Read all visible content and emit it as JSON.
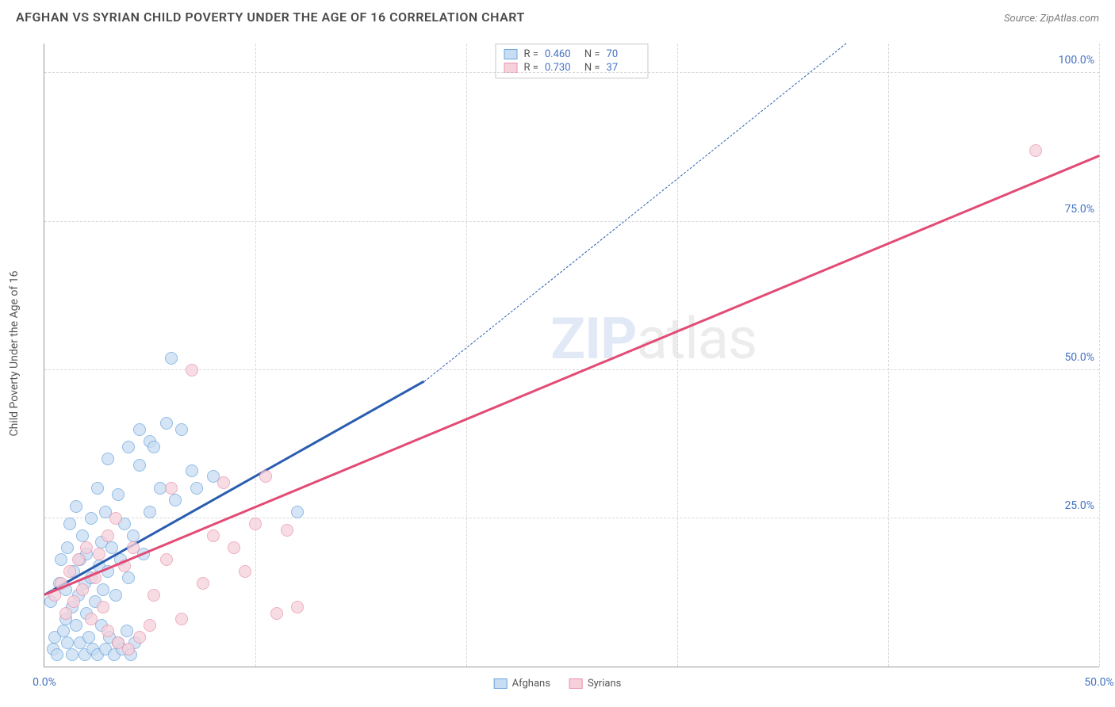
{
  "title": "AFGHAN VS SYRIAN CHILD POVERTY UNDER THE AGE OF 16 CORRELATION CHART",
  "source_label": "Source: ",
  "source_value": "ZipAtlas.com",
  "ylabel": "Child Poverty Under the Age of 16",
  "watermark_a": "ZIP",
  "watermark_b": "atlas",
  "chart": {
    "type": "scatter",
    "xlim": [
      0,
      50
    ],
    "ylim": [
      0,
      105
    ],
    "x_ticks": [
      0,
      50
    ],
    "x_tick_labels": [
      "0.0%",
      "50.0%"
    ],
    "y_ticks": [
      25,
      50,
      75,
      100
    ],
    "y_tick_labels": [
      "25.0%",
      "50.0%",
      "75.0%",
      "100.0%"
    ],
    "x_gridlines": [
      10,
      20,
      30,
      40,
      50
    ],
    "y_gridlines": [
      25,
      50,
      75,
      100
    ],
    "background_color": "#ffffff",
    "grid_color": "#d8d8d8",
    "axis_color": "#999999",
    "marker_size": 16,
    "marker_opacity": 0.75,
    "series": {
      "afghans": {
        "label": "Afghans",
        "fill": "#c7ddf2",
        "stroke": "#6da6de",
        "line_color": "#2a5db0",
        "R": "0.460",
        "N": "70",
        "regression": {
          "x0": 0,
          "y0": 12,
          "x1_solid": 18,
          "y1_solid": 48,
          "x1_dash": 38,
          "y1_dash": 105
        },
        "points": [
          [
            0.3,
            11
          ],
          [
            0.5,
            5
          ],
          [
            0.7,
            14
          ],
          [
            0.8,
            18
          ],
          [
            1.0,
            8
          ],
          [
            1.0,
            13
          ],
          [
            1.1,
            20
          ],
          [
            1.2,
            24
          ],
          [
            1.3,
            10
          ],
          [
            1.4,
            16
          ],
          [
            1.5,
            27
          ],
          [
            1.6,
            12
          ],
          [
            1.7,
            18
          ],
          [
            1.8,
            22
          ],
          [
            1.9,
            14
          ],
          [
            2.0,
            19
          ],
          [
            2.0,
            9
          ],
          [
            2.2,
            15
          ],
          [
            2.2,
            25
          ],
          [
            2.4,
            11
          ],
          [
            2.5,
            30
          ],
          [
            2.6,
            17
          ],
          [
            2.7,
            21
          ],
          [
            2.8,
            13
          ],
          [
            2.9,
            26
          ],
          [
            3.0,
            16
          ],
          [
            3.0,
            35
          ],
          [
            3.2,
            20
          ],
          [
            3.4,
            12
          ],
          [
            3.5,
            29
          ],
          [
            3.6,
            18
          ],
          [
            3.8,
            24
          ],
          [
            4.0,
            15
          ],
          [
            4.0,
            37
          ],
          [
            4.2,
            22
          ],
          [
            4.5,
            34
          ],
          [
            4.5,
            40
          ],
          [
            4.7,
            19
          ],
          [
            5.0,
            38
          ],
          [
            5.0,
            26
          ],
          [
            5.2,
            37
          ],
          [
            5.5,
            30
          ],
          [
            5.8,
            41
          ],
          [
            6.0,
            52
          ],
          [
            6.2,
            28
          ],
          [
            6.5,
            40
          ],
          [
            7.0,
            33
          ],
          [
            7.2,
            30
          ],
          [
            8.0,
            32
          ],
          [
            12.0,
            26
          ],
          [
            0.4,
            3
          ],
          [
            0.6,
            2
          ],
          [
            0.9,
            6
          ],
          [
            1.1,
            4
          ],
          [
            1.3,
            2
          ],
          [
            1.5,
            7
          ],
          [
            1.7,
            4
          ],
          [
            1.9,
            2
          ],
          [
            2.1,
            5
          ],
          [
            2.3,
            3
          ],
          [
            2.5,
            2
          ],
          [
            2.7,
            7
          ],
          [
            2.9,
            3
          ],
          [
            3.1,
            5
          ],
          [
            3.3,
            2
          ],
          [
            3.5,
            4
          ],
          [
            3.7,
            3
          ],
          [
            3.9,
            6
          ],
          [
            4.1,
            2
          ],
          [
            4.3,
            4
          ]
        ]
      },
      "syrians": {
        "label": "Syrians",
        "fill": "#f6d1dc",
        "stroke": "#e794ab",
        "line_color": "#e24b75",
        "R": "0.730",
        "N": "37",
        "regression": {
          "x0": 0,
          "y0": 12,
          "x1_solid": 50,
          "y1_solid": 86
        },
        "points": [
          [
            0.5,
            12
          ],
          [
            0.8,
            14
          ],
          [
            1.0,
            9
          ],
          [
            1.2,
            16
          ],
          [
            1.4,
            11
          ],
          [
            1.6,
            18
          ],
          [
            1.8,
            13
          ],
          [
            2.0,
            20
          ],
          [
            2.2,
            8
          ],
          [
            2.4,
            15
          ],
          [
            2.6,
            19
          ],
          [
            2.8,
            10
          ],
          [
            3.0,
            22
          ],
          [
            3.0,
            6
          ],
          [
            3.4,
            25
          ],
          [
            3.5,
            4
          ],
          [
            3.8,
            17
          ],
          [
            4.0,
            3
          ],
          [
            4.2,
            20
          ],
          [
            4.5,
            5
          ],
          [
            5.0,
            7
          ],
          [
            5.2,
            12
          ],
          [
            5.8,
            18
          ],
          [
            6.0,
            30
          ],
          [
            6.5,
            8
          ],
          [
            7.0,
            50
          ],
          [
            7.5,
            14
          ],
          [
            8.0,
            22
          ],
          [
            8.5,
            31
          ],
          [
            9.0,
            20
          ],
          [
            9.5,
            16
          ],
          [
            10.0,
            24
          ],
          [
            10.5,
            32
          ],
          [
            11.0,
            9
          ],
          [
            11.5,
            23
          ],
          [
            12.0,
            10
          ],
          [
            47.0,
            87
          ]
        ]
      }
    },
    "legend_stats_headers": {
      "r": "R =",
      "n": "N ="
    }
  }
}
